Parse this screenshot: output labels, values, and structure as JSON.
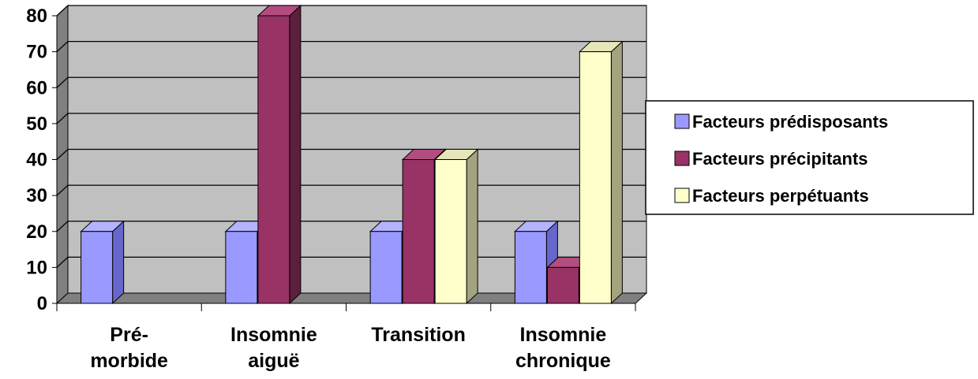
{
  "chart_data": {
    "type": "bar",
    "title": "",
    "xlabel": "",
    "ylabel": "",
    "ylim": [
      0,
      80
    ],
    "yticks": [
      "0",
      "10",
      "20",
      "30",
      "40",
      "50",
      "60",
      "70",
      "80"
    ],
    "grid": true,
    "three_d": true,
    "legend_position": "right",
    "categories": [
      [
        "Pré-",
        "morbide"
      ],
      [
        "Insomnie",
        "aiguë"
      ],
      [
        "Transition"
      ],
      [
        "Insomnie",
        "chronique"
      ]
    ],
    "series": [
      {
        "name": "Facteurs prédisposants",
        "color": "#9999ff",
        "side": "#6666cc",
        "top": "#b3b3ff",
        "values": [
          20,
          20,
          20,
          20
        ]
      },
      {
        "name": "Facteurs précipitants",
        "color": "#993366",
        "side": "#5c1f3d",
        "top": "#b34d80",
        "values": [
          0,
          80,
          40,
          10
        ]
      },
      {
        "name": "Facteurs perpétuants",
        "color": "#ffffcc",
        "side": "#a3a380",
        "top": "#e6e6b8",
        "values": [
          0,
          0,
          40,
          70
        ]
      }
    ]
  }
}
